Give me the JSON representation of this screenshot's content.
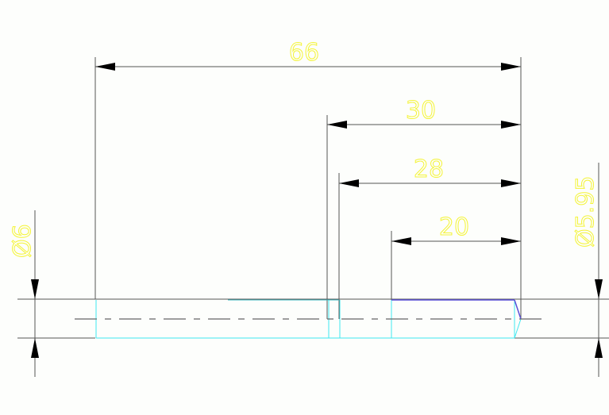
{
  "drawing": {
    "dimensions": {
      "overall_length": "66",
      "length_30": "30",
      "length_28": "28",
      "length_20": "20",
      "left_diameter": "Ø6",
      "right_diameter": "Ø5.95"
    },
    "colors": {
      "dimension_text": "#f4f43a",
      "outline": "#3fe8f0",
      "top_edge": "#5a4fd6",
      "dimension_lines": "#555555"
    }
  }
}
